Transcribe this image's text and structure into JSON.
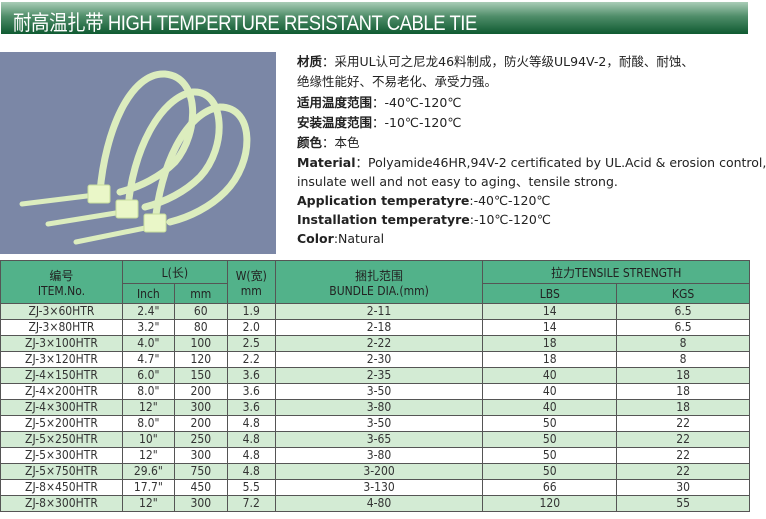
{
  "title": "耐高温扎带 HIGH TEMPERTURE RESISTANT CABLE TIE",
  "photo": {
    "subject": "cable-ties-image",
    "background_color": "#7b87a6",
    "tie_color": "#e4f5c4"
  },
  "description": {
    "cn_material_label": "材质",
    "cn_material_text": "：采用UL认可之尼龙46料制成，防火等级UL94V-2，耐酸、耐蚀、",
    "cn_material_text2": "绝缘性能好、不易老化、承受力强。",
    "cn_app_temp_label": "适用温度范围",
    "cn_app_temp_value": "：-40℃-120℃",
    "cn_inst_temp_label": "安装温度范围",
    "cn_inst_temp_value": "：-10℃-120℃",
    "cn_color_label": "颜色",
    "cn_color_value": "：本色",
    "en_material_label": "Material",
    "en_material_text": "：Polyamide46HR,94V-2 certificated by UL.Acid & erosion control,",
    "en_material_text2": "insulate well and not easy to aging、tensile strong.",
    "en_app_temp_label": "Application temperatyre",
    "en_app_temp_value": ":-40℃-120℃",
    "en_inst_temp_label": "Installation temperatyre",
    "en_inst_temp_value": ":-10℃-120℃",
    "en_color_label": "Color",
    "en_color_value": ":Natural"
  },
  "table": {
    "headers": {
      "item_cn": "编号",
      "item_en": "ITEM.No.",
      "length": "L(长)",
      "inch": "Inch",
      "mm": "mm",
      "width": "W(宽)",
      "width_unit": "mm",
      "bundle_cn": "捆扎范围",
      "bundle_en": "BUNDLE DIA.(mm)",
      "tensile": "拉力TENSILE STRENGTH",
      "lbs": "LBS",
      "kgs": "KGS"
    },
    "rows": [
      [
        "ZJ-3×60HTR",
        "2.4\"",
        "60",
        "1.9",
        "2-11",
        "14",
        "6.5"
      ],
      [
        "ZJ-3×80HTR",
        "3.2\"",
        "80",
        "2.0",
        "2-18",
        "14",
        "6.5"
      ],
      [
        "ZJ-3×100HTR",
        "4.0\"",
        "100",
        "2.5",
        "2-22",
        "18",
        "8"
      ],
      [
        "ZJ-3×120HTR",
        "4.7\"",
        "120",
        "2.2",
        "2-30",
        "18",
        "8"
      ],
      [
        "ZJ-4×150HTR",
        "6.0\"",
        "150",
        "3.6",
        "2-35",
        "40",
        "18"
      ],
      [
        "ZJ-4×200HTR",
        "8.0\"",
        "200",
        "3.6",
        "3-50",
        "40",
        "18"
      ],
      [
        "ZJ-4×300HTR",
        "12\"",
        "300",
        "3.6",
        "3-80",
        "40",
        "18"
      ],
      [
        "ZJ-5×200HTR",
        "8.0\"",
        "200",
        "4.8",
        "3-50",
        "50",
        "22"
      ],
      [
        "ZJ-5×250HTR",
        "10\"",
        "250",
        "4.8",
        "3-65",
        "50",
        "22"
      ],
      [
        "ZJ-5×300HTR",
        "12\"",
        "300",
        "4.8",
        "3-80",
        "50",
        "22"
      ],
      [
        "ZJ-5×750HTR",
        "29.6\"",
        "750",
        "4.8",
        "3-200",
        "50",
        "22"
      ],
      [
        "ZJ-8×450HTR",
        "17.7\"",
        "450",
        "5.5",
        "3-130",
        "66",
        "30"
      ],
      [
        "ZJ-8×300HTR",
        "12\"",
        "300",
        "7.2",
        "4-80",
        "120",
        "55"
      ]
    ]
  }
}
